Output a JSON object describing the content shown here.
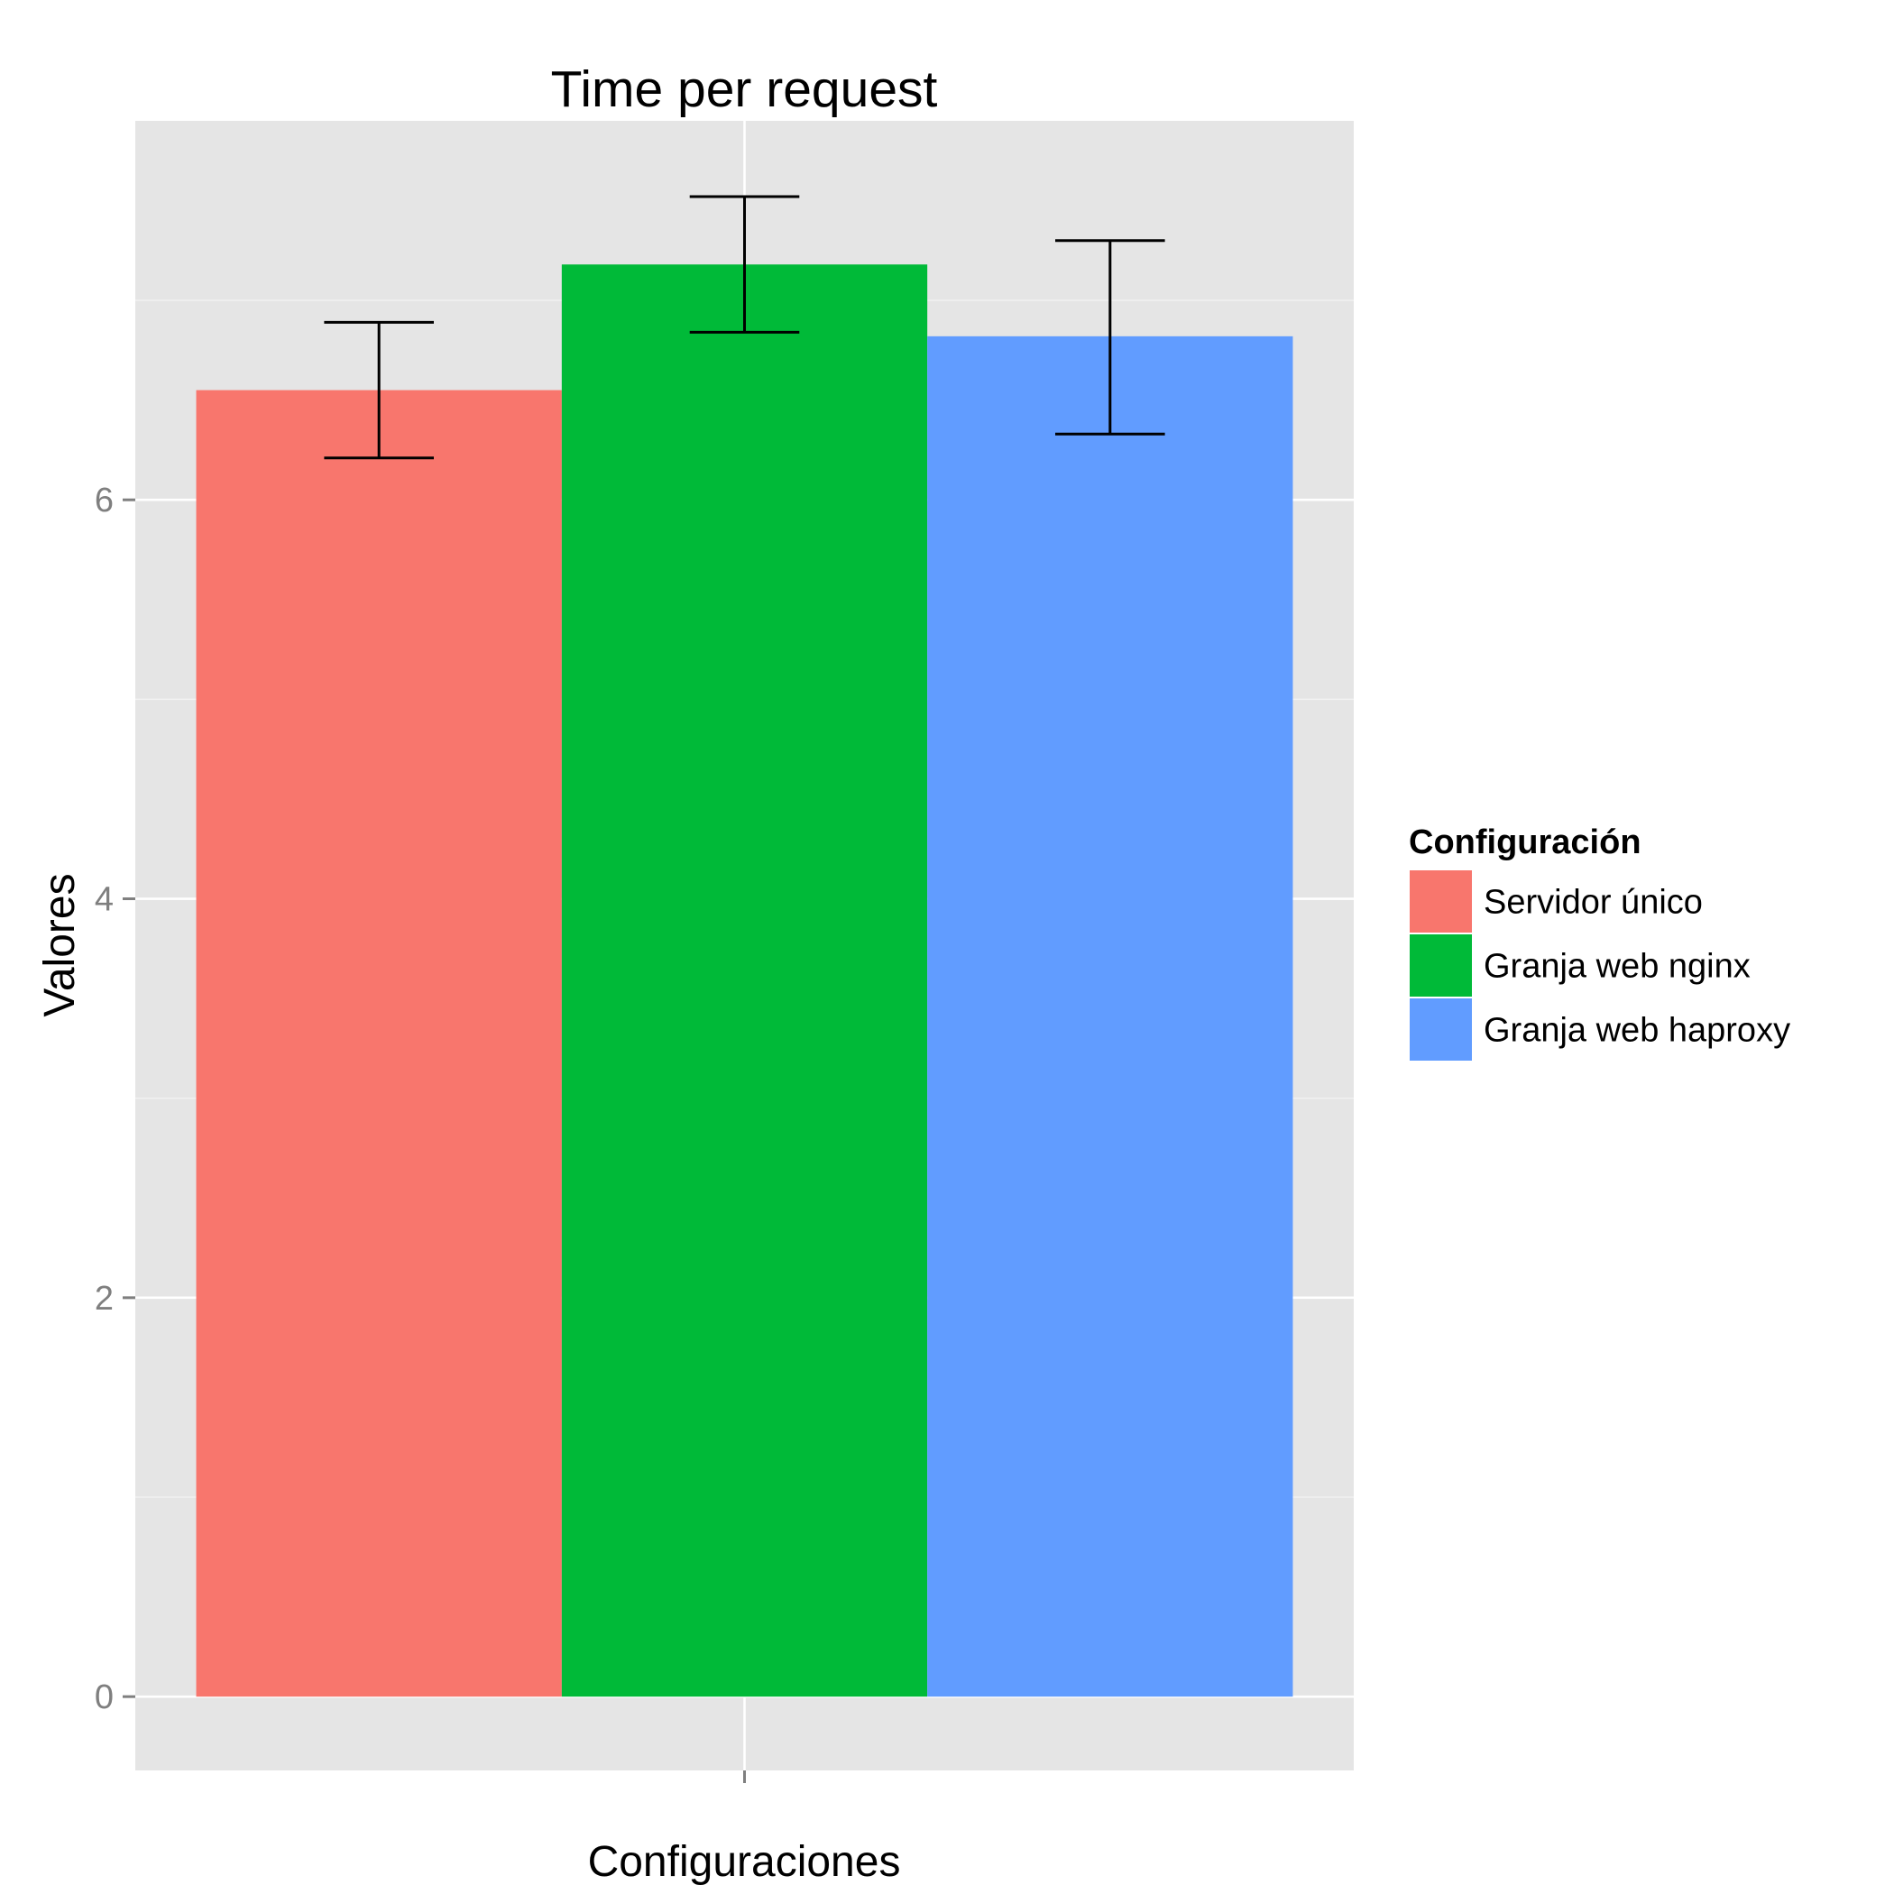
{
  "chart_data": {
    "type": "bar",
    "title": "Time per request",
    "xlabel": "Configuraciones",
    "ylabel": "Valores",
    "ylim": [
      -0.37,
      7.9
    ],
    "yticks": [
      0,
      2,
      4,
      6
    ],
    "grid": true,
    "legend_position": "right",
    "legend": {
      "title": "Configuración"
    },
    "series": [
      {
        "name": "Servidor único",
        "value": 6.55,
        "error_low": 6.21,
        "error_high": 6.89,
        "color": "#F8766D"
      },
      {
        "name": "Granja web nginx",
        "value": 7.18,
        "error_low": 6.84,
        "error_high": 7.52,
        "color": "#00BA38"
      },
      {
        "name": "Granja web haproxy",
        "value": 6.82,
        "error_low": 6.33,
        "error_high": 7.3,
        "color": "#619CFF"
      }
    ],
    "colors": {
      "panel": "#E5E5E5",
      "grid_major": "#FFFFFF",
      "grid_minor": "#F2F2F2",
      "errorbar": "#000000"
    }
  }
}
